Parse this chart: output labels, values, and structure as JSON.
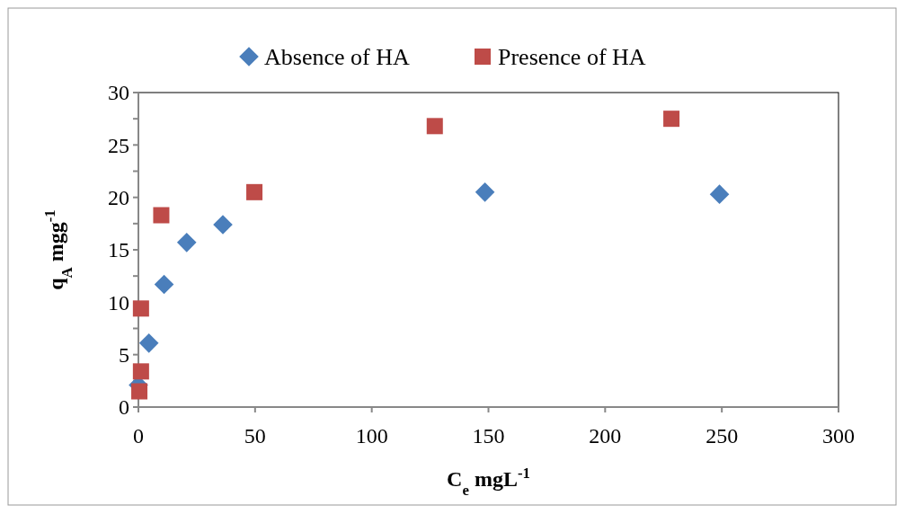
{
  "chart_data": {
    "type": "scatter",
    "xlabel": "C$_{e}$  mgL$^{-1}$",
    "ylabel": "q$_{A}$  mgg$^{-1}$",
    "xlim": [
      0,
      300
    ],
    "xticks": [
      0,
      50,
      100,
      150,
      200,
      250,
      300
    ],
    "ylim": [
      0,
      30
    ],
    "yticks": [
      0,
      {
        "value": 2.5,
        "label": null
      },
      5,
      {
        "value": 7.5,
        "label": null
      },
      10,
      {
        "value": 12.5,
        "label": null
      },
      15,
      {
        "value": 17.5,
        "label": null
      },
      20,
      {
        "value": 22.5,
        "label": null
      },
      25,
      {
        "value": 27.5,
        "label": null
      },
      30
    ],
    "grid": false,
    "legend": "top",
    "series": [
      {
        "name": "Absence of HA",
        "color": "#4a7ebb",
        "marker": "diamond",
        "x": [
          0,
          4.5,
          11,
          20.7,
          36.2,
          148.5,
          249
        ],
        "values": [
          2.1,
          6.1,
          11.7,
          15.7,
          17.4,
          20.5,
          20.3
        ]
      },
      {
        "name": "Presence of HA",
        "color": "#be4b48",
        "marker": "square",
        "x": [
          0.4,
          1.1,
          1.1,
          9.8,
          49.7,
          127,
          228.4
        ],
        "values": [
          1.5,
          3.4,
          9.4,
          18.3,
          20.5,
          26.8,
          27.5
        ]
      }
    ]
  }
}
